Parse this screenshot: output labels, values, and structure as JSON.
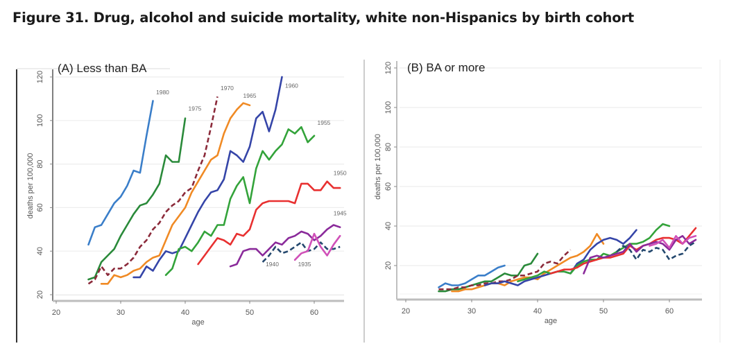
{
  "figure_title": "Figure 31. Drug, alcohol and suicide mortality, white non-Hispanics by birth cohort",
  "chart_data": [
    {
      "type": "line",
      "title": "(A) Less than BA",
      "xlabel": "age",
      "ylabel": "deaths per 100,000",
      "xlim": [
        20,
        64
      ],
      "ylim": [
        12,
        122
      ],
      "xticks": [
        20,
        30,
        40,
        50,
        60
      ],
      "yticks": [
        20,
        40,
        60,
        80,
        100,
        120
      ],
      "grid": true,
      "legend": "inline-labels",
      "series": [
        {
          "name": "1980",
          "color": "#3a7ec9",
          "dashed": false,
          "x": [
            25,
            26,
            27,
            28,
            29,
            30,
            31,
            32,
            33,
            34,
            35
          ],
          "y": [
            43,
            51,
            52,
            57,
            62,
            65,
            70,
            77,
            76,
            93,
            109
          ]
        },
        {
          "name": "1975",
          "color": "#2a8a3a",
          "dashed": false,
          "x": [
            25,
            26,
            27,
            28,
            29,
            30,
            31,
            32,
            33,
            34,
            35,
            36,
            37,
            38,
            39,
            40
          ],
          "y": [
            27,
            28,
            35,
            38,
            41,
            47,
            52,
            57,
            61,
            62,
            66,
            71,
            84,
            81,
            81,
            101
          ]
        },
        {
          "name": "1970",
          "color": "#8b2a3a",
          "dashed": true,
          "x": [
            25,
            26,
            27,
            28,
            29,
            30,
            31,
            32,
            33,
            34,
            35,
            36,
            37,
            38,
            39,
            40,
            41,
            42,
            43,
            44,
            45
          ],
          "y": [
            25,
            27,
            33,
            29,
            32,
            32,
            34,
            37,
            42,
            45,
            50,
            53,
            58,
            61,
            63,
            67,
            69,
            77,
            84,
            97,
            111
          ]
        },
        {
          "name": "1965",
          "color": "#f08a24",
          "dashed": false,
          "x": [
            27,
            28,
            29,
            30,
            31,
            32,
            33,
            34,
            35,
            36,
            37,
            38,
            39,
            40,
            41,
            42,
            43,
            44,
            45,
            46,
            47,
            48,
            49,
            50
          ],
          "y": [
            25,
            25,
            29,
            28,
            29,
            31,
            32,
            35,
            37,
            38,
            45,
            52,
            56,
            60,
            67,
            72,
            77,
            82,
            84,
            94,
            101,
            105,
            108,
            107
          ]
        },
        {
          "name": "1960",
          "color": "#3545a8",
          "dashed": false,
          "x": [
            32,
            33,
            34,
            35,
            36,
            37,
            38,
            39,
            40,
            41,
            42,
            43,
            44,
            45,
            46,
            47,
            48,
            49,
            50,
            51,
            52,
            53,
            54,
            55
          ],
          "y": [
            28,
            28,
            33,
            31,
            36,
            40,
            39,
            40,
            46,
            52,
            58,
            63,
            67,
            68,
            73,
            86,
            84,
            81,
            88,
            101,
            104,
            95,
            105,
            120
          ]
        },
        {
          "name": "1955",
          "color": "#33a33a",
          "dashed": false,
          "x": [
            37,
            38,
            39,
            40,
            41,
            42,
            43,
            44,
            45,
            46,
            47,
            48,
            49,
            50,
            51,
            52,
            53,
            54,
            55,
            56,
            57,
            58,
            59,
            60
          ],
          "y": [
            29,
            32,
            41,
            42,
            40,
            44,
            49,
            47,
            52,
            52,
            64,
            70,
            74,
            62,
            78,
            86,
            82,
            86,
            89,
            96,
            94,
            97,
            90,
            93
          ]
        },
        {
          "name": "1950",
          "color": "#e83030",
          "dashed": false,
          "x": [
            42,
            43,
            44,
            45,
            46,
            47,
            48,
            49,
            50,
            51,
            52,
            53,
            54,
            55,
            56,
            57,
            58,
            59,
            60,
            61,
            62,
            63,
            64
          ],
          "y": [
            34,
            38,
            42,
            46,
            45,
            43,
            48,
            47,
            50,
            59,
            62,
            63,
            63,
            63,
            63,
            62,
            71,
            71,
            68,
            68,
            72,
            69,
            69
          ]
        },
        {
          "name": "1945",
          "color": "#8a2a9a",
          "dashed": false,
          "x": [
            47,
            48,
            49,
            50,
            51,
            52,
            53,
            54,
            55,
            56,
            57,
            58,
            59,
            60,
            61,
            62,
            63,
            64
          ],
          "y": [
            33,
            34,
            40,
            41,
            41,
            38,
            41,
            44,
            43,
            46,
            47,
            49,
            48,
            45,
            47,
            50,
            52,
            51
          ]
        },
        {
          "name": "1940",
          "color": "#24486e",
          "dashed": true,
          "x": [
            52,
            53,
            54,
            55,
            56,
            57,
            58,
            59,
            60,
            61,
            62,
            63,
            64
          ],
          "y": [
            35,
            38,
            42,
            39,
            40,
            42,
            44,
            40,
            41,
            44,
            41,
            41,
            42
          ]
        },
        {
          "name": "1935",
          "color": "#d050b8",
          "dashed": false,
          "x": [
            57,
            58,
            59,
            60,
            61,
            62,
            63,
            64
          ],
          "y": [
            36,
            39,
            40,
            48,
            42,
            38,
            43,
            47
          ]
        }
      ]
    },
    {
      "type": "line",
      "title": "(B) BA or more",
      "xlabel": "age",
      "ylabel": "deaths per 100,000",
      "xlim": [
        19,
        65
      ],
      "ylim": [
        3,
        122
      ],
      "xticks": [
        20,
        30,
        40,
        50,
        60
      ],
      "yticks": [
        20,
        40,
        60,
        80,
        100,
        120
      ],
      "grid": true,
      "legend": "none",
      "series": [
        {
          "name": "1980",
          "color": "#3a7ec9",
          "dashed": false,
          "x": [
            25,
            26,
            27,
            28,
            29,
            30,
            31,
            32,
            33,
            34,
            35
          ],
          "y": [
            9,
            11,
            10,
            10,
            11,
            13,
            15,
            15,
            17,
            19,
            20
          ]
        },
        {
          "name": "1975",
          "color": "#2a8a3a",
          "dashed": false,
          "x": [
            25,
            26,
            27,
            28,
            29,
            30,
            31,
            32,
            33,
            34,
            35,
            36,
            37,
            38,
            39,
            40
          ],
          "y": [
            7,
            7,
            8,
            8,
            9,
            10,
            11,
            12,
            12,
            14,
            16,
            15,
            15,
            20,
            21,
            26
          ]
        },
        {
          "name": "1970",
          "color": "#8b2a3a",
          "dashed": true,
          "x": [
            25,
            26,
            27,
            28,
            29,
            30,
            31,
            32,
            33,
            34,
            35,
            36,
            37,
            38,
            39,
            40,
            41,
            42,
            43,
            44,
            45
          ],
          "y": [
            8,
            8,
            8,
            9,
            9,
            10,
            10,
            11,
            11,
            12,
            12,
            13,
            15,
            15,
            16,
            17,
            21,
            22,
            21,
            25,
            28
          ]
        },
        {
          "name": "1965",
          "color": "#f08a24",
          "dashed": false,
          "x": [
            27,
            28,
            29,
            30,
            31,
            32,
            33,
            34,
            35,
            36,
            37,
            38,
            39,
            40,
            41,
            42,
            43,
            44,
            45,
            46,
            47,
            48,
            49,
            50
          ],
          "y": [
            7,
            7,
            8,
            8,
            9,
            10,
            11,
            11,
            10,
            12,
            13,
            14,
            14,
            13,
            16,
            18,
            20,
            22,
            24,
            25,
            27,
            30,
            36,
            31
          ]
        },
        {
          "name": "1960",
          "color": "#3545a8",
          "dashed": false,
          "x": [
            32,
            33,
            34,
            35,
            36,
            37,
            38,
            39,
            40,
            41,
            42,
            43,
            44,
            45,
            46,
            47,
            48,
            49,
            50,
            51,
            52,
            53,
            54,
            55
          ],
          "y": [
            10,
            11,
            11,
            12,
            11,
            10,
            12,
            13,
            14,
            15,
            16,
            17,
            17,
            16,
            21,
            23,
            28,
            31,
            33,
            34,
            33,
            31,
            34,
            38
          ]
        },
        {
          "name": "1955",
          "color": "#33a33a",
          "dashed": false,
          "x": [
            37,
            38,
            39,
            40,
            41,
            42,
            43,
            44,
            45,
            46,
            47,
            48,
            49,
            50,
            51,
            52,
            53,
            54,
            55,
            56,
            57,
            58,
            59,
            60
          ],
          "y": [
            12,
            13,
            14,
            15,
            17,
            16,
            17,
            17,
            16,
            20,
            22,
            23,
            23,
            26,
            25,
            27,
            29,
            31,
            31,
            32,
            34,
            38,
            41,
            40
          ]
        },
        {
          "name": "1950",
          "color": "#e83030",
          "dashed": false,
          "x": [
            42,
            43,
            44,
            45,
            46,
            47,
            48,
            49,
            50,
            51,
            52,
            53,
            54,
            55,
            56,
            57,
            58,
            59,
            60,
            61,
            62,
            63,
            64
          ],
          "y": [
            16,
            17,
            18,
            18,
            19,
            21,
            22,
            23,
            24,
            24,
            25,
            26,
            30,
            28,
            30,
            31,
            33,
            34,
            34,
            33,
            31,
            35,
            39
          ]
        },
        {
          "name": "1945",
          "color": "#8a2a9a",
          "dashed": false,
          "x": [
            47,
            48,
            49,
            50,
            51,
            52,
            53,
            54,
            55,
            56,
            57,
            58,
            59,
            60,
            61,
            62,
            63,
            64
          ],
          "y": [
            16,
            24,
            25,
            24,
            25,
            26,
            27,
            31,
            27,
            30,
            31,
            32,
            31,
            28,
            33,
            35,
            31,
            33
          ]
        },
        {
          "name": "1940",
          "color": "#24486e",
          "dashed": true,
          "x": [
            52,
            53,
            54,
            55,
            56,
            57,
            58,
            59,
            60,
            61,
            62,
            63,
            64
          ],
          "y": [
            27,
            30,
            28,
            23,
            28,
            27,
            29,
            28,
            23,
            25,
            26,
            30,
            32
          ]
        },
        {
          "name": "1935",
          "color": "#d050b8",
          "dashed": false,
          "x": [
            57,
            58,
            59,
            60,
            61,
            62,
            63,
            64
          ],
          "y": [
            30,
            31,
            33,
            29,
            35,
            31,
            34,
            35
          ]
        }
      ]
    }
  ]
}
